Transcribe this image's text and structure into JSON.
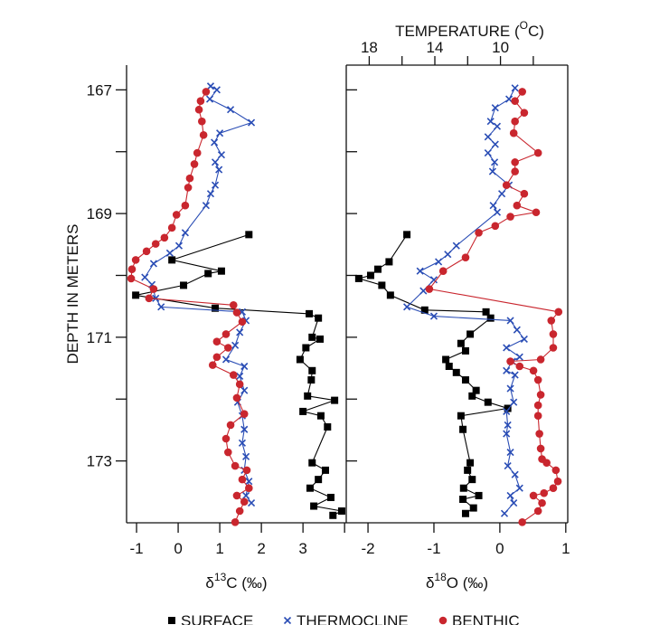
{
  "chart_data": [
    {
      "type": "profile",
      "y_label": "DEPTH IN METERS",
      "x_label": {
        "main": "δ",
        "sup": "13",
        "rest": "C (‰)"
      },
      "xlim": [
        -1.24,
        4.04
      ],
      "xticks": [
        -1,
        0,
        1,
        2,
        3
      ],
      "minor_xticks": [
        4
      ],
      "ylim": [
        174.0,
        166.6
      ],
      "yticks": [
        167,
        169,
        171,
        173
      ],
      "minor_yticks": [
        168,
        170,
        172
      ],
      "series": [
        {
          "name": "SURFACE",
          "color": "#000000",
          "marker": "square",
          "values": [
            1.7,
            -0.15,
            1.04,
            0.72,
            0.13,
            -1.02,
            0.89,
            3.15,
            3.37,
            3.22,
            3.41,
            3.07,
            2.93,
            3.22,
            3.2,
            3.11,
            3.76,
            3.0,
            3.43,
            3.59,
            3.22,
            3.54,
            3.37,
            3.17,
            3.67,
            3.26,
            3.93,
            3.72
          ],
          "depth": [
            169.34,
            169.75,
            169.93,
            169.97,
            170.16,
            170.32,
            170.53,
            170.62,
            170.69,
            171.0,
            171.03,
            171.17,
            171.36,
            171.54,
            171.69,
            171.95,
            172.02,
            172.2,
            172.27,
            172.45,
            173.03,
            173.15,
            173.3,
            173.44,
            173.59,
            173.73,
            173.81,
            173.88
          ]
        },
        {
          "name": "THERMOCLINE",
          "color": "#2a4db5",
          "marker": "cross",
          "values": [
            0.78,
            0.93,
            0.76,
            1.26,
            1.76,
            1.0,
            0.87,
            1.04,
            0.89,
            0.98,
            0.89,
            0.78,
            0.67,
            0.17,
            0.02,
            -0.2,
            -0.59,
            -0.8,
            -0.63,
            -0.54,
            -0.41,
            1.54,
            1.63,
            1.48,
            1.37,
            1.15,
            1.59,
            1.48,
            1.59,
            1.43,
            1.54,
            1.59,
            1.54,
            1.63,
            1.59,
            1.7,
            1.63,
            1.76
          ],
          "depth": [
            166.94,
            167.0,
            167.15,
            167.32,
            167.53,
            167.7,
            167.85,
            168.05,
            168.17,
            168.29,
            168.54,
            168.68,
            168.87,
            169.31,
            169.52,
            169.64,
            169.81,
            170.03,
            170.15,
            170.37,
            170.51,
            170.59,
            170.73,
            170.92,
            171.13,
            171.36,
            171.47,
            171.63,
            171.86,
            172.05,
            172.27,
            172.49,
            172.71,
            172.93,
            173.15,
            173.33,
            173.56,
            173.68
          ]
        },
        {
          "name": "BENTHIC",
          "color": "#c9262e",
          "marker": "circle",
          "values": [
            0.67,
            0.54,
            0.5,
            0.57,
            0.61,
            0.46,
            0.39,
            0.28,
            0.24,
            0.17,
            -0.04,
            -0.15,
            -0.33,
            -0.54,
            -0.76,
            -1.02,
            -1.11,
            -1.13,
            -0.59,
            -0.7,
            1.33,
            1.41,
            1.54,
            1.15,
            0.93,
            1.2,
            0.93,
            0.83,
            1.33,
            1.48,
            1.41,
            1.59,
            1.26,
            1.15,
            1.2,
            1.37,
            1.65,
            1.54,
            1.7,
            1.41,
            1.59,
            1.48,
            1.37
          ],
          "depth": [
            167.03,
            167.18,
            167.32,
            167.51,
            167.73,
            168.02,
            168.2,
            168.43,
            168.58,
            168.87,
            169.02,
            169.23,
            169.39,
            169.49,
            169.61,
            169.75,
            169.9,
            170.05,
            170.22,
            170.37,
            170.48,
            170.6,
            170.75,
            170.95,
            171.07,
            171.17,
            171.32,
            171.45,
            171.61,
            171.76,
            171.98,
            172.24,
            172.42,
            172.64,
            172.86,
            173.08,
            173.15,
            173.3,
            173.44,
            173.56,
            173.66,
            173.81,
            173.99
          ]
        }
      ]
    },
    {
      "type": "profile",
      "x_label": {
        "main": "δ",
        "sup": "18",
        "rest": "O (‰)"
      },
      "xlim": [
        -2.33,
        1.03
      ],
      "xticks": [
        -2,
        -1,
        0,
        1
      ],
      "x2_label": {
        "main": "TEMPERATURE (",
        "sup": "O",
        "rest": "C)"
      },
      "x2lim": [
        19.4,
        5.9
      ],
      "x2ticks": [
        18,
        14,
        10
      ],
      "minor_x2ticks": [
        16,
        12,
        8
      ],
      "series": [
        {
          "color": "#000000",
          "marker": "square",
          "values": [
            -1.41,
            -1.68,
            -1.85,
            -1.96,
            -2.14,
            -1.79,
            -1.66,
            -1.14,
            -0.21,
            -0.14,
            -0.45,
            -0.59,
            -0.52,
            -0.82,
            -0.77,
            -0.66,
            -0.52,
            -0.36,
            -0.42,
            -0.18,
            0.12,
            -0.59,
            -0.56,
            -0.45,
            -0.49,
            -0.42,
            -0.55,
            -0.32,
            -0.56,
            -0.4,
            -0.52
          ],
          "depth": [
            169.34,
            169.78,
            169.9,
            170.0,
            170.05,
            170.16,
            170.32,
            170.56,
            170.59,
            170.69,
            170.95,
            171.1,
            171.22,
            171.36,
            171.47,
            171.57,
            171.69,
            171.86,
            171.95,
            172.05,
            172.15,
            172.27,
            172.49,
            173.03,
            173.15,
            173.3,
            173.44,
            173.56,
            173.62,
            173.76,
            173.85
          ]
        },
        {
          "color": "#2a4db5",
          "marker": "cross",
          "values": [
            0.23,
            0.14,
            -0.07,
            -0.14,
            -0.04,
            -0.18,
            -0.07,
            -0.18,
            -0.08,
            -0.11,
            0.14,
            0.03,
            -0.1,
            -0.04,
            -0.66,
            -0.79,
            -0.93,
            -1.21,
            -1.0,
            -1.16,
            -1.41,
            -1.0,
            0.16,
            0.26,
            0.37,
            0.1,
            0.3,
            0.19,
            0.1,
            0.23,
            0.16,
            0.21,
            0.1,
            0.12,
            0.1,
            0.16,
            0.12,
            0.23,
            0.3,
            0.16,
            0.21,
            0.07
          ],
          "depth": [
            166.97,
            167.15,
            167.29,
            167.51,
            167.59,
            167.76,
            167.88,
            168.02,
            168.17,
            168.32,
            168.54,
            168.68,
            168.87,
            168.98,
            169.52,
            169.66,
            169.78,
            169.93,
            170.07,
            170.25,
            170.51,
            170.66,
            170.73,
            170.88,
            171.03,
            171.17,
            171.32,
            171.39,
            171.54,
            171.61,
            171.83,
            172.05,
            172.2,
            172.42,
            172.56,
            172.86,
            173.08,
            173.22,
            173.44,
            173.56,
            173.68,
            173.85
          ]
        },
        {
          "color": "#c9262e",
          "marker": "circle",
          "values": [
            0.34,
            0.23,
            0.37,
            0.23,
            0.21,
            0.58,
            0.23,
            0.23,
            0.1,
            0.37,
            0.26,
            0.55,
            0.16,
            -0.07,
            -0.32,
            -0.52,
            -0.86,
            -1.07,
            0.89,
            0.78,
            0.81,
            0.81,
            0.62,
            0.16,
            0.3,
            0.51,
            0.58,
            0.62,
            0.58,
            0.58,
            0.6,
            0.62,
            0.64,
            0.71,
            0.85,
            0.88,
            0.81,
            0.67,
            0.51,
            0.64,
            0.58,
            0.34
          ],
          "depth": [
            167.03,
            167.18,
            167.37,
            167.51,
            167.7,
            168.02,
            168.17,
            168.32,
            168.54,
            168.68,
            168.87,
            168.98,
            169.05,
            169.2,
            169.31,
            169.71,
            169.93,
            170.22,
            170.59,
            170.73,
            170.95,
            171.17,
            171.36,
            171.39,
            171.47,
            171.54,
            171.69,
            171.93,
            172.1,
            172.27,
            172.56,
            172.8,
            172.97,
            173.03,
            173.15,
            173.33,
            173.44,
            173.52,
            173.56,
            173.68,
            173.81,
            173.99
          ]
        }
      ]
    }
  ]
}
